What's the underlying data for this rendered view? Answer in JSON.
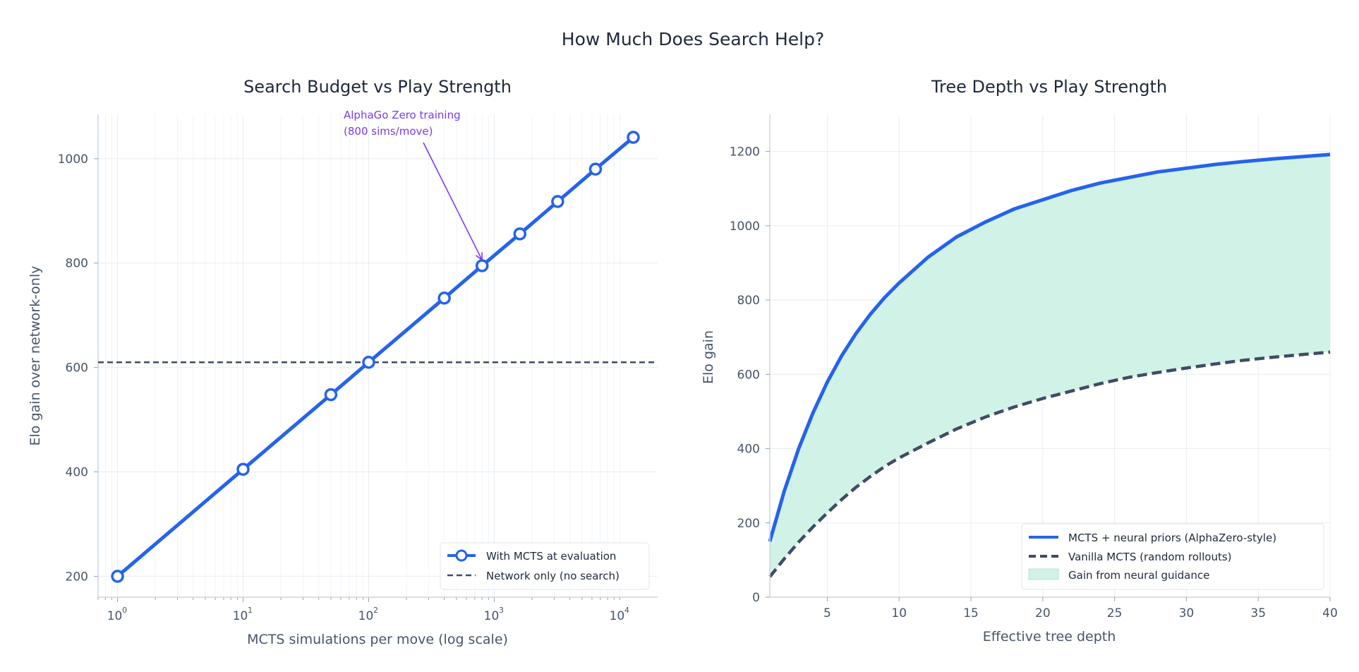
{
  "figure": {
    "title": "How Much Does Search Help?"
  },
  "colors": {
    "primary": "#2563eb",
    "baseline": "#3f4c63",
    "fill": "#d1f2e6",
    "annotation": "#7c3aed",
    "text": "#1e293b",
    "muted": "#475569"
  },
  "chart_data": [
    {
      "type": "line",
      "title": "Search Budget vs Play Strength",
      "xlabel": "MCTS simulations per move (log scale)",
      "ylabel": "Elo gain over network-only",
      "xscale": "log",
      "xlim": [
        0.7,
        20000
      ],
      "ylim": [
        160,
        1085
      ],
      "xticks": [
        {
          "base": "10",
          "exp": "0",
          "value": 1
        },
        {
          "base": "10",
          "exp": "1",
          "value": 10
        },
        {
          "base": "10",
          "exp": "2",
          "value": 100
        },
        {
          "base": "10",
          "exp": "3",
          "value": 1000
        },
        {
          "base": "10",
          "exp": "4",
          "value": 10000
        }
      ],
      "yticks": [
        "200",
        "400",
        "600",
        "800",
        "1000"
      ],
      "grid": true,
      "legend_position": "bottom-right",
      "series": [
        {
          "name": "With MCTS at evaluation",
          "style": "solid-with-markers",
          "x": [
            1,
            10,
            50,
            100,
            400,
            800,
            1600,
            3200,
            6400,
            12800
          ],
          "y": [
            200,
            405,
            548,
            610,
            733,
            795,
            856,
            918,
            980,
            1041
          ]
        },
        {
          "name": "Network only (no search)",
          "style": "dashed-horizontal",
          "y": 610
        }
      ],
      "annotation": {
        "lines": [
          "AlphaGo Zero training",
          "(800 sims/move)"
        ],
        "points_to": {
          "x": 800,
          "y": 795
        }
      }
    },
    {
      "type": "area",
      "title": "Tree Depth vs Play Strength",
      "xlabel": "Effective tree depth",
      "ylabel": "Elo gain",
      "xlim": [
        1,
        40
      ],
      "ylim": [
        0,
        1300
      ],
      "xticks": [
        "5",
        "10",
        "15",
        "20",
        "25",
        "30",
        "35",
        "40"
      ],
      "yticks": [
        "0",
        "200",
        "400",
        "600",
        "800",
        "1000",
        "1200"
      ],
      "grid": true,
      "legend_position": "bottom-right",
      "x": [
        1,
        2,
        3,
        4,
        5,
        6,
        7,
        8,
        9,
        10,
        12,
        14,
        16,
        18,
        20,
        22,
        24,
        26,
        28,
        30,
        32,
        34,
        36,
        38,
        40
      ],
      "series": [
        {
          "name": "MCTS + neural priors (AlphaZero-style)",
          "style": "solid",
          "y": [
            150,
            285,
            399,
            496,
            579,
            650,
            710,
            762,
            807,
            846,
            915,
            970,
            1010,
            1045,
            1070,
            1095,
            1115,
            1130,
            1145,
            1155,
            1165,
            1173,
            1180,
            1186,
            1192
          ]
        },
        {
          "name": "Vanilla MCTS (random rollouts)",
          "style": "dashed",
          "y": 55,
          "values": [
            55,
            103,
            148,
            189,
            227,
            263,
            296,
            325,
            352,
            375,
            415,
            453,
            485,
            512,
            535,
            555,
            575,
            592,
            605,
            617,
            628,
            638,
            646,
            653,
            660
          ]
        },
        {
          "name": "Gain from neural guidance",
          "style": "fill-between"
        }
      ]
    }
  ]
}
